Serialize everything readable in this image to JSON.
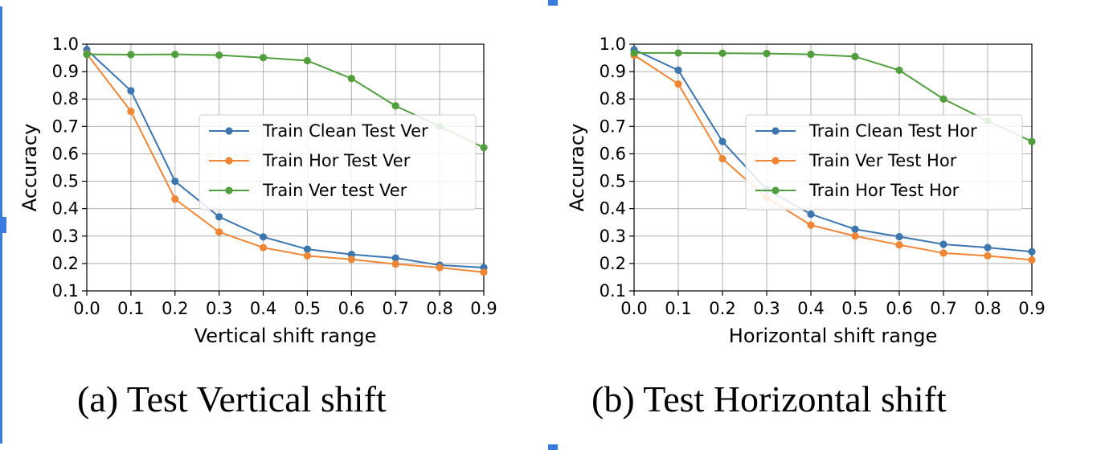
{
  "chart_data": [
    {
      "type": "line",
      "caption": "(a) Test Vertical shift",
      "xlabel": "Vertical shift range",
      "ylabel": "Accuracy",
      "xlim": [
        0.0,
        0.9
      ],
      "ylim": [
        0.1,
        1.0
      ],
      "xticks": [
        "0.0",
        "0.1",
        "0.2",
        "0.3",
        "0.4",
        "0.5",
        "0.6",
        "0.7",
        "0.8",
        "0.9"
      ],
      "yticks": [
        "0.1",
        "0.2",
        "0.3",
        "0.4",
        "0.5",
        "0.6",
        "0.7",
        "0.8",
        "0.9",
        "1.0"
      ],
      "grid": true,
      "legend_position": "center-right",
      "x": [
        0.0,
        0.1,
        0.2,
        0.3,
        0.4,
        0.5,
        0.6,
        0.7,
        0.8,
        0.9
      ],
      "series": [
        {
          "name": "Train Clean Test Ver",
          "color": "#3d76ae",
          "values": [
            0.98,
            0.83,
            0.5,
            0.37,
            0.297,
            0.252,
            0.233,
            0.22,
            0.194,
            0.185
          ]
        },
        {
          "name": "Train Hor Test Ver",
          "color": "#ef8636",
          "values": [
            0.965,
            0.755,
            0.435,
            0.315,
            0.258,
            0.228,
            0.215,
            0.198,
            0.185,
            0.168
          ]
        },
        {
          "name": "Train Ver test Ver",
          "color": "#519e3e",
          "values": [
            0.963,
            0.962,
            0.963,
            0.96,
            0.951,
            0.94,
            0.875,
            0.775,
            0.7,
            0.623
          ]
        }
      ]
    },
    {
      "type": "line",
      "caption": "(b) Test Horizontal shift",
      "xlabel": "Horizontal shift range",
      "ylabel": "Accuracy",
      "xlim": [
        0.0,
        0.9
      ],
      "ylim": [
        0.1,
        1.0
      ],
      "xticks": [
        "0.0",
        "0.1",
        "0.2",
        "0.3",
        "0.4",
        "0.5",
        "0.6",
        "0.7",
        "0.8",
        "0.9"
      ],
      "yticks": [
        "0.1",
        "0.2",
        "0.3",
        "0.4",
        "0.5",
        "0.6",
        "0.7",
        "0.8",
        "0.9",
        "1.0"
      ],
      "grid": true,
      "legend_position": "center-right",
      "x": [
        0.0,
        0.1,
        0.2,
        0.3,
        0.4,
        0.5,
        0.6,
        0.7,
        0.8,
        0.9
      ],
      "series": [
        {
          "name": "Train Clean Test Hor",
          "color": "#3d76ae",
          "values": [
            0.98,
            0.905,
            0.645,
            0.47,
            0.38,
            0.325,
            0.298,
            0.27,
            0.258,
            0.243
          ]
        },
        {
          "name": "Train Ver Test Hor",
          "color": "#ef8636",
          "values": [
            0.96,
            0.855,
            0.582,
            0.44,
            0.34,
            0.3,
            0.268,
            0.238,
            0.228,
            0.213
          ]
        },
        {
          "name": "Train Hor Test Hor",
          "color": "#519e3e",
          "values": [
            0.968,
            0.968,
            0.967,
            0.966,
            0.963,
            0.955,
            0.905,
            0.8,
            0.72,
            0.645
          ]
        }
      ]
    }
  ]
}
